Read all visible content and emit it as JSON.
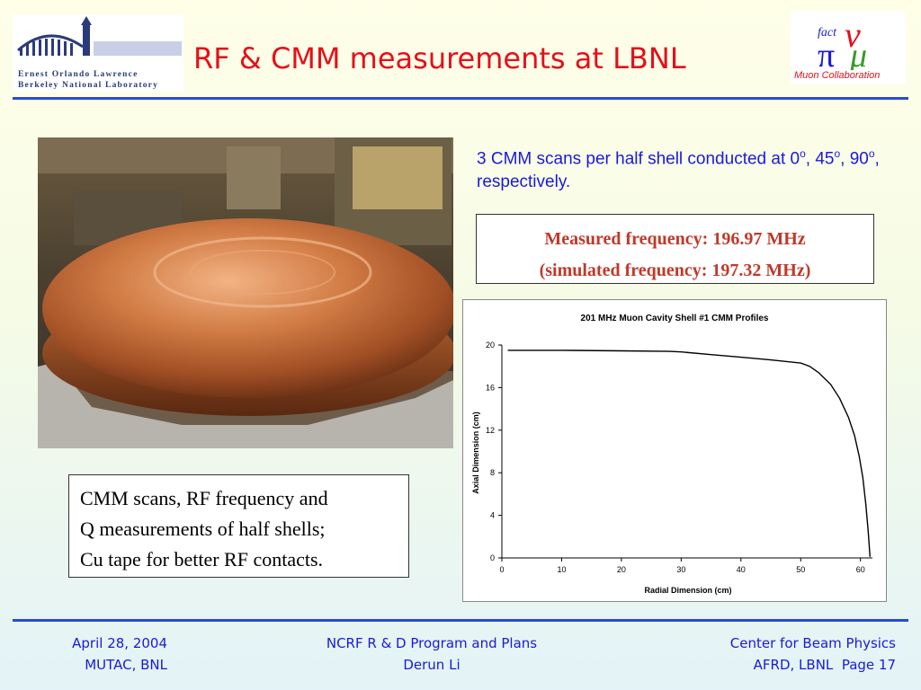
{
  "header": {
    "title": "RF & CMM measurements at LBNL",
    "lbnl_logo": {
      "line1": "Ernest Orlando Lawrence",
      "line2": "Berkeley National Laboratory"
    },
    "collab_logo": {
      "text": "Muon Collaboration",
      "icon": "nu-fact-logo-icon"
    }
  },
  "main": {
    "photo": {
      "icon": "copper-half-shell-photo"
    },
    "scan_note": {
      "text_1": "3 CMM scans per half shell conducted at 0",
      "sup": "o",
      "text_2": ", 45",
      "text_3": ", 90",
      "text_4": ", respectively."
    },
    "frequency": {
      "measured": "Measured frequency: 196.97 MHz",
      "simulated": "(simulated frequency: 197.32 MHz)"
    },
    "caption": {
      "line1": "CMM scans, RF frequency and",
      "line2": "Q measurements of half shells;",
      "line3": "Cu tape for better RF contacts."
    }
  },
  "chart_data": {
    "type": "line",
    "title": "201 MHz Muon Cavity Shell #1 CMM Profiles",
    "xlabel": "Radial Dimension (cm)",
    "ylabel": "Axial Dimension (cm)",
    "xlim": [
      0,
      62
    ],
    "ylim": [
      0,
      20
    ],
    "xticks": [
      0,
      10,
      20,
      30,
      40,
      50,
      60
    ],
    "yticks": [
      0,
      4,
      8,
      12,
      16,
      20
    ],
    "grid": false,
    "series": [
      {
        "color": "#000000",
        "x": [
          1,
          10,
          20,
          28,
          30,
          35,
          40,
          45,
          50,
          51.5,
          53,
          55,
          56.5,
          58,
          59,
          59.8,
          60.4,
          60.9,
          61.3,
          61.5,
          61.6
        ],
        "y": [
          19.5,
          19.5,
          19.45,
          19.4,
          19.35,
          19.1,
          18.85,
          18.6,
          18.3,
          18.0,
          17.4,
          16.3,
          15.0,
          13.2,
          11.5,
          9.5,
          7.5,
          5.0,
          2.5,
          0.8,
          0.1
        ]
      }
    ]
  },
  "footer": {
    "left_line1": "April 28, 2004",
    "left_line2": "MUTAC, BNL",
    "mid_line1": "NCRF R & D Program and Plans",
    "mid_line2": "Derun Li",
    "right_line1": "Center for Beam Physics",
    "right_line2": "AFRD, LBNL",
    "page": "Page 17"
  }
}
